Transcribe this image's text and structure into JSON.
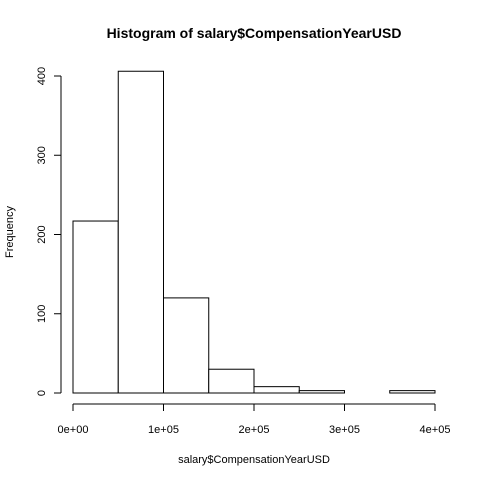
{
  "chart_data": {
    "type": "bar",
    "title": "Histogram of salary$CompensationYearUSD",
    "xlabel": "salary$CompensationYearUSD",
    "ylabel": "Frequency",
    "bins": [
      {
        "start": 0,
        "end": 50000,
        "value": 217
      },
      {
        "start": 50000,
        "end": 100000,
        "value": 406
      },
      {
        "start": 100000,
        "end": 150000,
        "value": 120
      },
      {
        "start": 150000,
        "end": 200000,
        "value": 30
      },
      {
        "start": 200000,
        "end": 250000,
        "value": 8
      },
      {
        "start": 250000,
        "end": 300000,
        "value": 3
      },
      {
        "start": 300000,
        "end": 350000,
        "value": 0
      },
      {
        "start": 350000,
        "end": 400000,
        "value": 3
      }
    ],
    "xlim": [
      0,
      400000
    ],
    "ylim": [
      0,
      406
    ],
    "x_ticks": [
      {
        "value": 0,
        "label": "0e+00"
      },
      {
        "value": 100000,
        "label": "1e+05"
      },
      {
        "value": 200000,
        "label": "2e+05"
      },
      {
        "value": 300000,
        "label": "3e+05"
      },
      {
        "value": 400000,
        "label": "4e+05"
      }
    ],
    "y_ticks": [
      {
        "value": 0,
        "label": "0"
      },
      {
        "value": 100,
        "label": "100"
      },
      {
        "value": 200,
        "label": "200"
      },
      {
        "value": 300,
        "label": "300"
      },
      {
        "value": 400,
        "label": "400"
      }
    ],
    "grid": false,
    "bar_fill": "#ffffff",
    "bar_stroke": "#000000"
  }
}
